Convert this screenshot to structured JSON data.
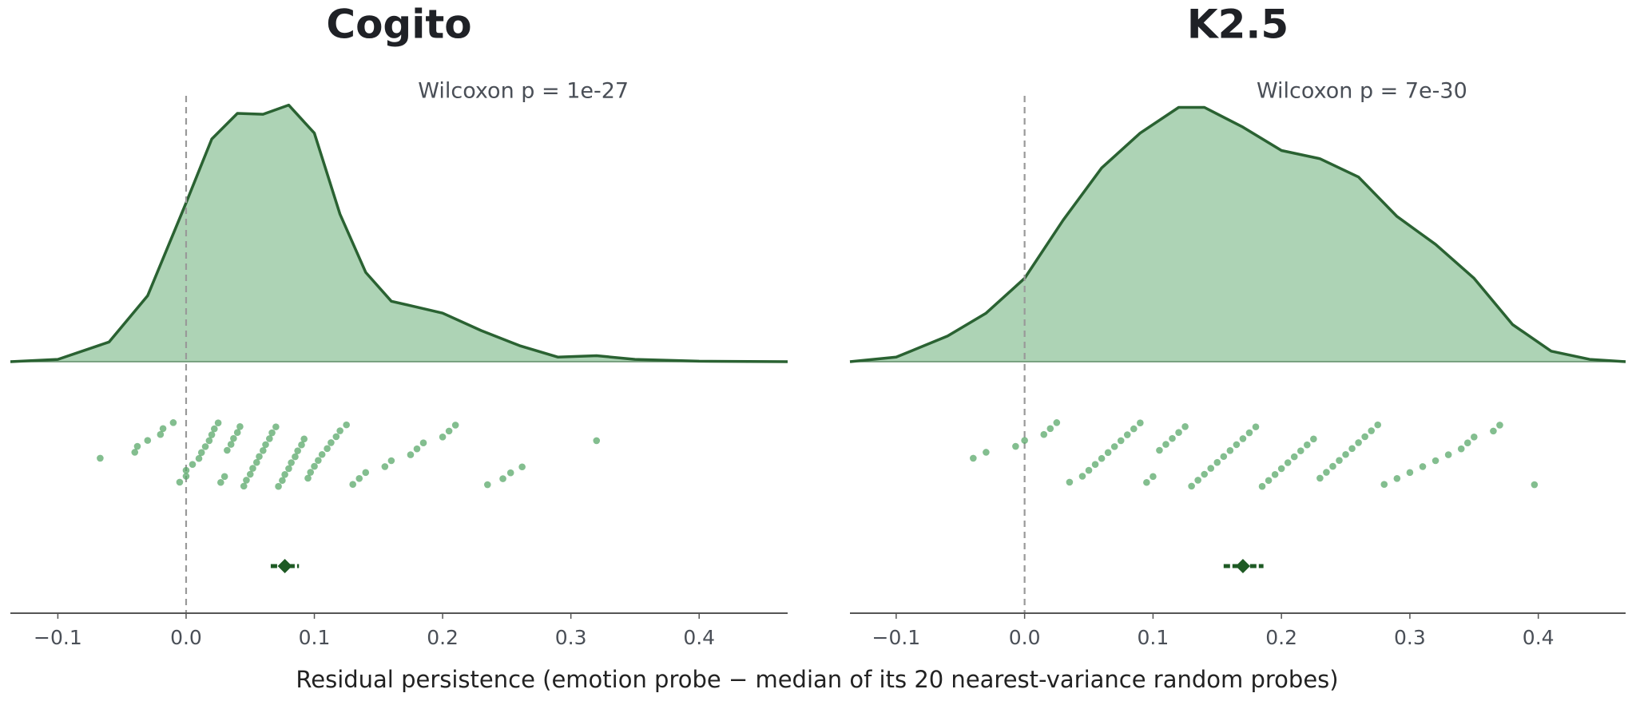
{
  "xlabel": "Residual persistence     (emotion probe  −  median of its 20 nearest-variance random probes)",
  "chart_data": [
    {
      "type": "raincloud",
      "title": "Cogito",
      "annotation": "Wilcoxon  p = 1e-27",
      "line_color": "#2a6232",
      "fill_color": "#add3b5",
      "point_color": "#5aa86a",
      "mean_color": "#1e5a24",
      "xlim": [
        -0.137,
        0.469
      ],
      "xticks": [
        {
          "value": -0.1,
          "label": "−0.1"
        },
        {
          "value": 0,
          "label": "0.0"
        },
        0.1,
        0.2,
        0.3,
        0.4
      ],
      "reference_x": 0,
      "density": {
        "x": [
          -0.137,
          -0.1,
          -0.06,
          -0.03,
          0.0,
          0.02,
          0.04,
          0.06,
          0.08,
          0.1,
          0.12,
          0.14,
          0.16,
          0.18,
          0.2,
          0.23,
          0.26,
          0.29,
          0.32,
          0.35,
          0.4,
          0.469
        ],
        "y": [
          0,
          0.05,
          0.43,
          1.44,
          3.47,
          4.86,
          5.42,
          5.4,
          5.6,
          4.99,
          3.22,
          1.95,
          1.32,
          1.19,
          1.06,
          0.68,
          0.35,
          0.1,
          0.13,
          0.05,
          0.01,
          0
        ]
      },
      "ylim": [
        0,
        6.5
      ],
      "points": [
        -0.067,
        -0.04,
        -0.038,
        -0.03,
        -0.02,
        -0.018,
        -0.01,
        -0.005,
        0.0,
        0.0,
        0.005,
        0.01,
        0.012,
        0.015,
        0.018,
        0.02,
        0.022,
        0.025,
        0.027,
        0.03,
        0.032,
        0.035,
        0.037,
        0.04,
        0.042,
        0.045,
        0.047,
        0.05,
        0.052,
        0.055,
        0.057,
        0.06,
        0.062,
        0.065,
        0.067,
        0.07,
        0.072,
        0.075,
        0.077,
        0.08,
        0.082,
        0.085,
        0.087,
        0.09,
        0.092,
        0.095,
        0.097,
        0.1,
        0.103,
        0.106,
        0.11,
        0.113,
        0.117,
        0.12,
        0.125,
        0.13,
        0.135,
        0.14,
        0.155,
        0.16,
        0.175,
        0.18,
        0.185,
        0.2,
        0.205,
        0.21,
        0.235,
        0.247,
        0.253,
        0.262,
        0.32
      ],
      "mean": 0.077,
      "ci": [
        0.066,
        0.088
      ]
    },
    {
      "type": "raincloud",
      "title": "K2.5",
      "annotation": "Wilcoxon  p = 7e-30",
      "line_color": "#2a6232",
      "fill_color": "#add3b5",
      "point_color": "#5aa86a",
      "mean_color": "#1e5a24",
      "xlim": [
        -0.136,
        0.468
      ],
      "xticks": [
        {
          "value": -0.1,
          "label": "−0.1"
        },
        {
          "value": 0,
          "label": "0.0"
        },
        0.1,
        0.2,
        0.3,
        0.4
      ],
      "reference_x": 0,
      "density": {
        "x": [
          -0.136,
          -0.1,
          -0.06,
          -0.03,
          0.0,
          0.03,
          0.06,
          0.09,
          0.12,
          0.14,
          0.17,
          0.2,
          0.23,
          0.26,
          0.29,
          0.32,
          0.35,
          0.38,
          0.41,
          0.44,
          0.468
        ],
        "y": [
          0,
          0.1,
          0.56,
          1.06,
          1.82,
          3.09,
          4.23,
          4.99,
          5.55,
          5.55,
          5.12,
          4.61,
          4.43,
          4.03,
          3.17,
          2.56,
          1.82,
          0.81,
          0.23,
          0.05,
          0
        ]
      },
      "ylim": [
        0,
        6.5
      ],
      "points": [
        -0.04,
        -0.03,
        -0.007,
        0.0,
        0.015,
        0.02,
        0.025,
        0.035,
        0.045,
        0.05,
        0.055,
        0.06,
        0.065,
        0.07,
        0.075,
        0.08,
        0.085,
        0.09,
        0.095,
        0.1,
        0.105,
        0.11,
        0.115,
        0.12,
        0.125,
        0.13,
        0.135,
        0.14,
        0.145,
        0.15,
        0.155,
        0.16,
        0.165,
        0.17,
        0.175,
        0.18,
        0.185,
        0.19,
        0.195,
        0.2,
        0.205,
        0.21,
        0.215,
        0.22,
        0.225,
        0.23,
        0.235,
        0.24,
        0.245,
        0.25,
        0.255,
        0.26,
        0.265,
        0.27,
        0.275,
        0.28,
        0.29,
        0.3,
        0.31,
        0.32,
        0.33,
        0.34,
        0.345,
        0.35,
        0.365,
        0.37,
        0.397
      ],
      "mean": 0.17,
      "ci": [
        0.155,
        0.186
      ]
    }
  ]
}
